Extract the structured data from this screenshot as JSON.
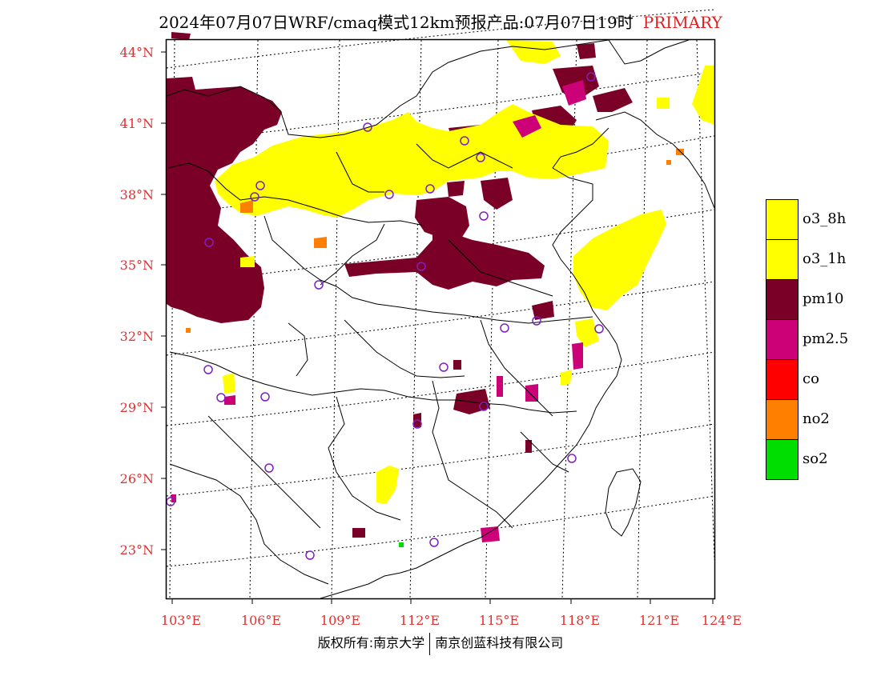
{
  "title": "2024年07月07日WRF/cmaq模式12km预报产品:07月07日19时",
  "title_tag": "PRIMARY",
  "lat_labels": [
    "44°N",
    "41°N",
    "38°N",
    "35°N",
    "32°N",
    "29°N",
    "26°N",
    "23°N"
  ],
  "lon_labels": [
    "103°E",
    "106°E",
    "109°E",
    "112°E",
    "115°E",
    "118°E",
    "121°E",
    "124°E"
  ],
  "legend": [
    {
      "label": "o3_8h",
      "color": "#ffff00"
    },
    {
      "label": "o3_1h",
      "color": "#ffff00"
    },
    {
      "label": "pm10",
      "color": "#7a0028"
    },
    {
      "label": "pm2.5",
      "color": "#cc0077"
    },
    {
      "label": "co",
      "color": "#ff0000"
    },
    {
      "label": "no2",
      "color": "#ff7f00"
    },
    {
      "label": "so2",
      "color": "#00dd00"
    }
  ],
  "footer": {
    "left": "版权所有:南京大学",
    "right": "南京创蓝科技有限公司"
  }
}
